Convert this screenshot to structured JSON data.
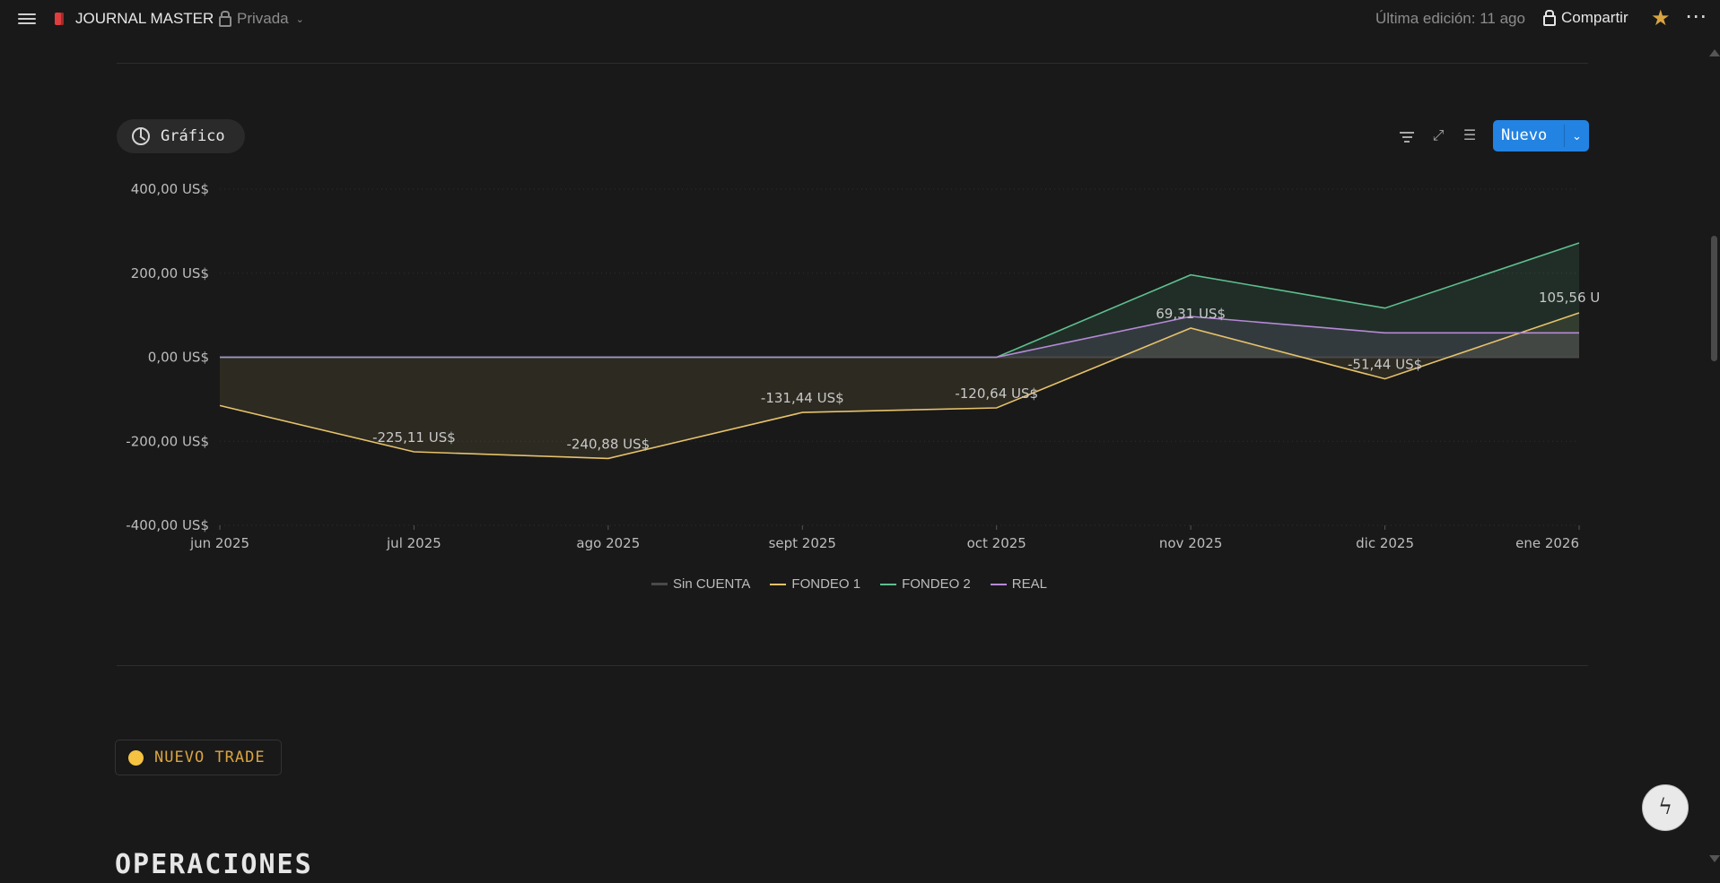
{
  "topbar": {
    "title": "JOURNAL MASTER",
    "privacy": "Privada",
    "last_edit": "Última edición: 11 ago",
    "share": "Compartir"
  },
  "view": {
    "label": "Gráfico",
    "new_button": "Nuevo"
  },
  "icons": {
    "menu": "hamburger-icon",
    "page": "book-icon",
    "lock": "lock-icon",
    "star": "star-icon",
    "more": "more-icon",
    "chart": "pie-chart-icon",
    "filter": "filter-icon",
    "expand": "expand-icon",
    "settings": "sliders-icon",
    "help": "help-icon"
  },
  "colors": {
    "background": "#191919",
    "accent": "#2383e2",
    "sin_cuenta": "#4a4a4a",
    "fondeo1": "#e6c26b",
    "fondeo2": "#5fbf8f",
    "real": "#b58ad6",
    "favorite": "#d9a441"
  },
  "chart_data": {
    "type": "area",
    "categories": [
      "jun 2025",
      "jul 2025",
      "ago 2025",
      "sept 2025",
      "oct 2025",
      "nov 2025",
      "dic 2025",
      "ene 2026"
    ],
    "ylim": [
      -400,
      400
    ],
    "yticks": [
      400,
      200,
      0,
      -200,
      -400
    ],
    "ytick_labels": [
      "400,00 US$",
      "200,00 US$",
      "0,00 US$",
      "-200,00 US$",
      "-400,00 US$"
    ],
    "grid": true,
    "legend_position": "bottom",
    "series": [
      {
        "name": "Sin CUENTA",
        "values": [
          0,
          0,
          0,
          0,
          0,
          0,
          0,
          0
        ]
      },
      {
        "name": "FONDEO 1",
        "values": [
          -115,
          -225.11,
          -240.88,
          -131.44,
          -120.64,
          69.31,
          -51.44,
          105.56
        ]
      },
      {
        "name": "FONDEO 2",
        "values": [
          0,
          0,
          0,
          0,
          0,
          196,
          117,
          272
        ]
      },
      {
        "name": "REAL",
        "values": [
          0,
          0,
          0,
          0,
          0,
          97,
          58,
          58
        ]
      }
    ],
    "data_labels": [
      {
        "index": 1,
        "text": "-225,11 US$"
      },
      {
        "index": 2,
        "text": "-240,88 US$"
      },
      {
        "index": 3,
        "text": "-131,44 US$"
      },
      {
        "index": 4,
        "text": "-120,64 US$"
      },
      {
        "index": 5,
        "text": "69,31 US$"
      },
      {
        "index": 6,
        "text": "-51,44 US$"
      },
      {
        "index": 7,
        "text": "105,56 U"
      }
    ]
  },
  "trade_button": "NUEVO TRADE",
  "section_title": "OPERACIONES",
  "help_glyph": "ϟ"
}
